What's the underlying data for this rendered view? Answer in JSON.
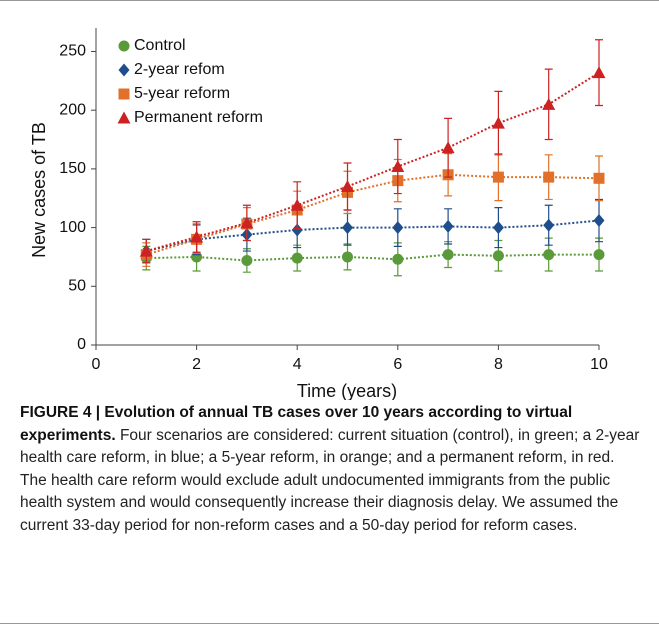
{
  "chart_data": {
    "type": "scatter",
    "x_label": "Time (years)",
    "y_label": "New cases of TB",
    "x": [
      1,
      2,
      3,
      4,
      5,
      6,
      7,
      8,
      9,
      10
    ],
    "xlim": [
      0,
      10
    ],
    "xticks": [
      0,
      2,
      4,
      6,
      8,
      10
    ],
    "ylim": [
      0,
      270
    ],
    "yticks": [
      0,
      50,
      100,
      150,
      200,
      250
    ],
    "legend": "upper-left",
    "series": [
      {
        "name": "Control",
        "color": "#5a9a3a",
        "marker": "circle",
        "values": [
          74,
          75,
          72,
          74,
          75,
          73,
          77,
          76,
          77,
          77
        ],
        "errors": [
          10,
          12,
          10,
          11,
          11,
          14,
          11,
          13,
          14,
          14
        ]
      },
      {
        "name": "2-year refom",
        "color": "#1f4e8c",
        "marker": "diamond",
        "values": [
          80,
          90,
          94,
          98,
          100,
          100,
          101,
          100,
          102,
          106
        ],
        "errors": [
          10,
          13,
          14,
          15,
          15,
          16,
          15,
          17,
          17,
          18
        ]
      },
      {
        "name": "5-year reform",
        "color": "#e0702a",
        "marker": "square",
        "values": [
          77,
          90,
          103,
          115,
          130,
          140,
          145,
          143,
          143,
          142
        ],
        "errors": [
          10,
          12,
          14,
          16,
          18,
          18,
          18,
          20,
          19,
          19
        ]
      },
      {
        "name": "Permanent reform",
        "color": "#cc2222",
        "marker": "triangle",
        "values": [
          80,
          92,
          104,
          119,
          135,
          152,
          168,
          189,
          205,
          232
        ],
        "errors": [
          10,
          13,
          15,
          20,
          20,
          23,
          25,
          27,
          30,
          28
        ]
      }
    ]
  },
  "caption": {
    "label": "FIGURE 4 | Evolution of annual TB cases over 10 years according to virtual experiments.",
    "text": "Four scenarios are considered: current situation (control), in green; a 2-year health care reform, in blue; a 5-year reform, in orange; and a permanent reform, in red. The health care reform would exclude adult undocumented immigrants from the public health system and would consequently increase their diagnosis delay. We assumed the current 33-day period for non-reform cases and a 50-day period for reform cases."
  }
}
